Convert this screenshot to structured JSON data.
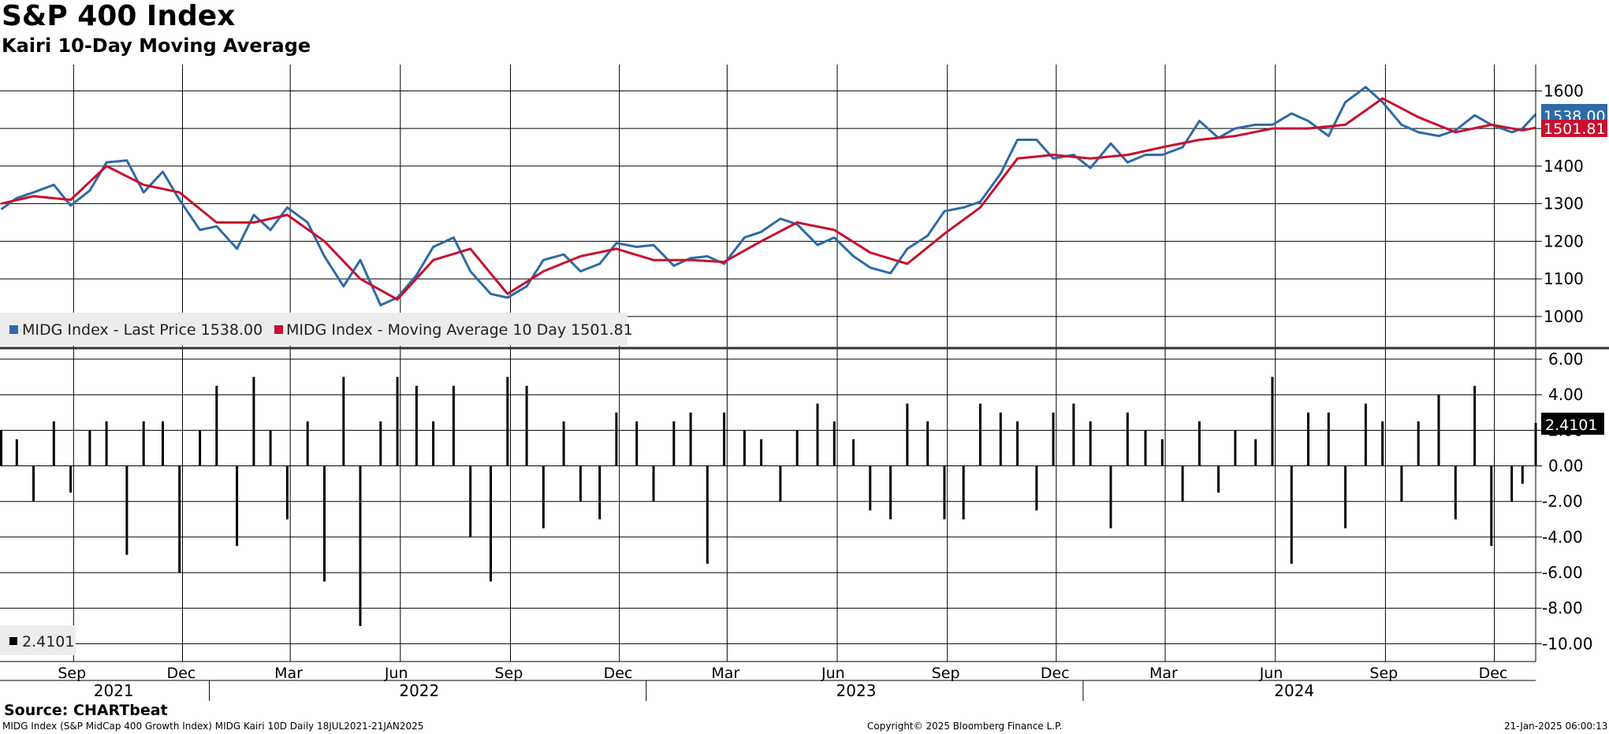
{
  "header": {
    "title": "S&P 400 Index",
    "subtitle": "Kairi 10-Day Moving Average"
  },
  "footer": {
    "source": "Source: CHARTbeat",
    "description": "MIDG Index (S&P MidCap 400 Growth Index) MIDG Kairi 10D  Daily 18JUL2021-21JAN2025",
    "copyright": "Copyright© 2025 Bloomberg Finance L.P.",
    "timestamp": "21-Jan-2025 06:00:13"
  },
  "colors": {
    "last_price": "#2e6aa6",
    "moving_average": "#c8102e",
    "kairi": "#000000",
    "grid": "#000000"
  },
  "chart_data": [
    {
      "type": "line",
      "ylim": [
        920,
        1670
      ],
      "yticks": [
        1000,
        1100,
        1200,
        1300,
        1400,
        1500,
        1600
      ],
      "grid": true,
      "legend_position": "bottom-left",
      "x_range": [
        "2021-07-18",
        "2025-01-21"
      ],
      "x_month_ticks": [
        "Sep",
        "Dec",
        "Mar",
        "Jun",
        "Sep",
        "Dec",
        "Mar",
        "Jun",
        "Sep",
        "Dec",
        "Mar",
        "Jun",
        "Sep",
        "Dec"
      ],
      "x_year_labels": [
        "2021",
        "2022",
        "2023",
        "2024"
      ],
      "legend": [
        {
          "name": "MIDG Index - Last Price 1538.00",
          "color": "#2e6aa6"
        },
        {
          "name": "MIDG Index - Moving Average 10 Day 1501.81",
          "color": "#c8102e"
        }
      ],
      "last_labels": [
        {
          "text": "1538.00",
          "value": 1538.0,
          "color": "#2e6aa6"
        },
        {
          "text": "1501.81",
          "value": 1501.81,
          "color": "#c8102e"
        }
      ],
      "series": [
        {
          "name": "MIDG Index - Last Price",
          "color": "#2e6aa6",
          "x": [
            "2021-07-19",
            "2021-08-01",
            "2021-08-15",
            "2021-09-01",
            "2021-09-15",
            "2021-10-01",
            "2021-10-15",
            "2021-11-01",
            "2021-11-15",
            "2021-12-01",
            "2021-12-15",
            "2022-01-01",
            "2022-01-15",
            "2022-02-01",
            "2022-02-15",
            "2022-03-01",
            "2022-03-15",
            "2022-04-01",
            "2022-04-15",
            "2022-05-01",
            "2022-05-15",
            "2022-06-01",
            "2022-06-15",
            "2022-07-01",
            "2022-07-15",
            "2022-08-01",
            "2022-08-15",
            "2022-09-01",
            "2022-09-15",
            "2022-10-01",
            "2022-10-15",
            "2022-11-01",
            "2022-11-15",
            "2022-12-01",
            "2022-12-15",
            "2023-01-01",
            "2023-01-15",
            "2023-02-01",
            "2023-02-15",
            "2023-03-01",
            "2023-03-15",
            "2023-04-01",
            "2023-04-15",
            "2023-05-01",
            "2023-05-15",
            "2023-06-01",
            "2023-06-15",
            "2023-07-01",
            "2023-07-15",
            "2023-08-01",
            "2023-08-15",
            "2023-09-01",
            "2023-09-15",
            "2023-10-01",
            "2023-10-15",
            "2023-11-01",
            "2023-11-15",
            "2023-12-01",
            "2023-12-15",
            "2024-01-01",
            "2024-01-15",
            "2024-02-01",
            "2024-02-15",
            "2024-03-01",
            "2024-03-15",
            "2024-04-01",
            "2024-04-15",
            "2024-05-01",
            "2024-05-15",
            "2024-06-01",
            "2024-06-15",
            "2024-07-01",
            "2024-07-15",
            "2024-08-01",
            "2024-08-15",
            "2024-09-01",
            "2024-09-15",
            "2024-10-01",
            "2024-10-15",
            "2024-11-01",
            "2024-11-15",
            "2024-12-01",
            "2024-12-15",
            "2025-01-01",
            "2025-01-10",
            "2025-01-21"
          ],
          "values": [
            1285,
            1315,
            1330,
            1350,
            1295,
            1335,
            1410,
            1415,
            1330,
            1385,
            1310,
            1230,
            1240,
            1180,
            1270,
            1230,
            1290,
            1250,
            1160,
            1080,
            1150,
            1030,
            1050,
            1110,
            1185,
            1210,
            1120,
            1060,
            1050,
            1080,
            1150,
            1165,
            1120,
            1140,
            1195,
            1185,
            1190,
            1135,
            1155,
            1160,
            1140,
            1210,
            1225,
            1260,
            1245,
            1190,
            1210,
            1160,
            1130,
            1115,
            1180,
            1215,
            1280,
            1290,
            1305,
            1380,
            1470,
            1470,
            1420,
            1430,
            1395,
            1460,
            1410,
            1430,
            1430,
            1450,
            1520,
            1475,
            1500,
            1510,
            1510,
            1540,
            1520,
            1480,
            1570,
            1610,
            1570,
            1510,
            1490,
            1480,
            1495,
            1535,
            1510,
            1490,
            1500,
            1538
          ]
        },
        {
          "name": "MIDG Index - Moving Average 10 Day",
          "color": "#c8102e",
          "x": [
            "2021-07-19",
            "2021-08-15",
            "2021-09-15",
            "2021-10-15",
            "2021-11-15",
            "2021-12-15",
            "2022-01-15",
            "2022-02-15",
            "2022-03-15",
            "2022-04-15",
            "2022-05-15",
            "2022-06-15",
            "2022-07-15",
            "2022-08-15",
            "2022-09-15",
            "2022-10-15",
            "2022-11-15",
            "2022-12-15",
            "2023-01-15",
            "2023-02-15",
            "2023-03-15",
            "2023-04-15",
            "2023-05-15",
            "2023-06-15",
            "2023-07-15",
            "2023-08-15",
            "2023-09-15",
            "2023-10-15",
            "2023-11-15",
            "2023-12-15",
            "2024-01-15",
            "2024-02-15",
            "2024-03-15",
            "2024-04-15",
            "2024-05-15",
            "2024-06-15",
            "2024-07-15",
            "2024-08-15",
            "2024-09-15",
            "2024-10-15",
            "2024-11-15",
            "2024-12-15",
            "2025-01-10",
            "2025-01-21"
          ],
          "values": [
            1300,
            1320,
            1310,
            1400,
            1350,
            1330,
            1250,
            1250,
            1270,
            1200,
            1100,
            1045,
            1150,
            1180,
            1060,
            1120,
            1160,
            1180,
            1150,
            1150,
            1145,
            1200,
            1250,
            1230,
            1170,
            1140,
            1220,
            1290,
            1420,
            1430,
            1420,
            1430,
            1450,
            1470,
            1480,
            1500,
            1500,
            1510,
            1580,
            1530,
            1490,
            1510,
            1495,
            1502
          ]
        }
      ]
    },
    {
      "type": "bar",
      "ylim": [
        -11,
        6.4
      ],
      "yticks": [
        6.0,
        4.0,
        2.0,
        0.0,
        -2.0,
        -4.0,
        -6.0,
        -8.0,
        -10.0
      ],
      "ytick_labels": [
        "6.00",
        "4.00",
        "2.00",
        "0.00",
        "-2.00",
        "-4.00",
        "-6.00",
        "-8.00",
        "-10.00"
      ],
      "grid": true,
      "legend": [
        {
          "name": "2.4101",
          "color": "#000000"
        }
      ],
      "last_label": {
        "text": "2.4101",
        "value": 2.4101
      },
      "series": [
        {
          "name": "Kairi 10D",
          "color": "#000000",
          "x": [
            "2021-07-19",
            "2021-08-01",
            "2021-08-15",
            "2021-09-01",
            "2021-09-15",
            "2021-10-01",
            "2021-10-15",
            "2021-11-01",
            "2021-11-15",
            "2021-12-01",
            "2021-12-15",
            "2022-01-01",
            "2022-01-15",
            "2022-02-01",
            "2022-02-15",
            "2022-03-01",
            "2022-03-15",
            "2022-04-01",
            "2022-04-15",
            "2022-05-01",
            "2022-05-15",
            "2022-06-01",
            "2022-06-15",
            "2022-07-01",
            "2022-07-15",
            "2022-08-01",
            "2022-08-15",
            "2022-09-01",
            "2022-09-15",
            "2022-10-01",
            "2022-10-15",
            "2022-11-01",
            "2022-11-15",
            "2022-12-01",
            "2022-12-15",
            "2023-01-01",
            "2023-01-15",
            "2023-02-01",
            "2023-02-15",
            "2023-03-01",
            "2023-03-15",
            "2023-04-01",
            "2023-04-15",
            "2023-05-01",
            "2023-05-15",
            "2023-06-01",
            "2023-06-15",
            "2023-07-01",
            "2023-07-15",
            "2023-08-01",
            "2023-08-15",
            "2023-09-01",
            "2023-09-15",
            "2023-10-01",
            "2023-10-15",
            "2023-11-01",
            "2023-11-15",
            "2023-12-01",
            "2023-12-15",
            "2024-01-01",
            "2024-01-15",
            "2024-02-01",
            "2024-02-15",
            "2024-03-01",
            "2024-03-15",
            "2024-04-01",
            "2024-04-15",
            "2024-05-01",
            "2024-05-15",
            "2024-06-01",
            "2024-06-15",
            "2024-07-01",
            "2024-07-15",
            "2024-08-01",
            "2024-08-15",
            "2024-09-01",
            "2024-09-15",
            "2024-10-01",
            "2024-10-15",
            "2024-11-01",
            "2024-11-15",
            "2024-12-01",
            "2024-12-15",
            "2025-01-01",
            "2025-01-10",
            "2025-01-21"
          ],
          "values": [
            2.0,
            1.5,
            -2.0,
            2.5,
            -1.5,
            2.0,
            2.5,
            -5.0,
            2.5,
            2.5,
            -6.0,
            2.0,
            4.5,
            -4.5,
            5.0,
            2.0,
            -3.0,
            2.5,
            -6.5,
            5.0,
            -9.0,
            2.5,
            5.0,
            4.5,
            2.5,
            4.5,
            -4.0,
            -6.5,
            5.0,
            4.5,
            -3.5,
            2.5,
            -2.0,
            -3.0,
            3.0,
            2.5,
            -2.0,
            2.5,
            3.0,
            -5.5,
            3.0,
            2.0,
            1.5,
            -2.0,
            2.0,
            3.5,
            2.5,
            1.5,
            -2.5,
            -3.0,
            3.5,
            2.5,
            -3.0,
            -3.0,
            3.5,
            3.0,
            2.5,
            -2.5,
            3.0,
            3.5,
            2.5,
            -3.5,
            3.0,
            2.0,
            1.5,
            -2.0,
            2.5,
            -1.5,
            2.0,
            1.5,
            5.0,
            -5.5,
            3.0,
            3.0,
            -3.5,
            3.5,
            2.5,
            -2.0,
            2.5,
            4.0,
            -3.0,
            4.5,
            -4.5,
            -2.0,
            -1.0,
            2.41
          ]
        }
      ]
    }
  ]
}
